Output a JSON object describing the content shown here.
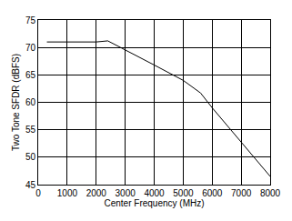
{
  "chart_data": {
    "type": "line",
    "x_label": "Center Frequency (MHz)",
    "y_label": "Two Tone SFDR (dBFS)",
    "x": [
      300,
      1000,
      2000,
      2400,
      3000,
      4000,
      5000,
      5600,
      6000,
      7000,
      8000
    ],
    "values": [
      71,
      71,
      71,
      71.2,
      69.5,
      66.8,
      64,
      61.7,
      59,
      52.8,
      46.5
    ],
    "color": "#000000",
    "xlim": [
      0,
      8000
    ],
    "xticks": [
      0,
      1000,
      2000,
      3000,
      4000,
      5000,
      6000,
      7000,
      8000
    ],
    "ylim": [
      45,
      75
    ],
    "yticks": [
      45,
      50,
      55,
      60,
      65,
      70,
      75
    ],
    "grid": true
  }
}
